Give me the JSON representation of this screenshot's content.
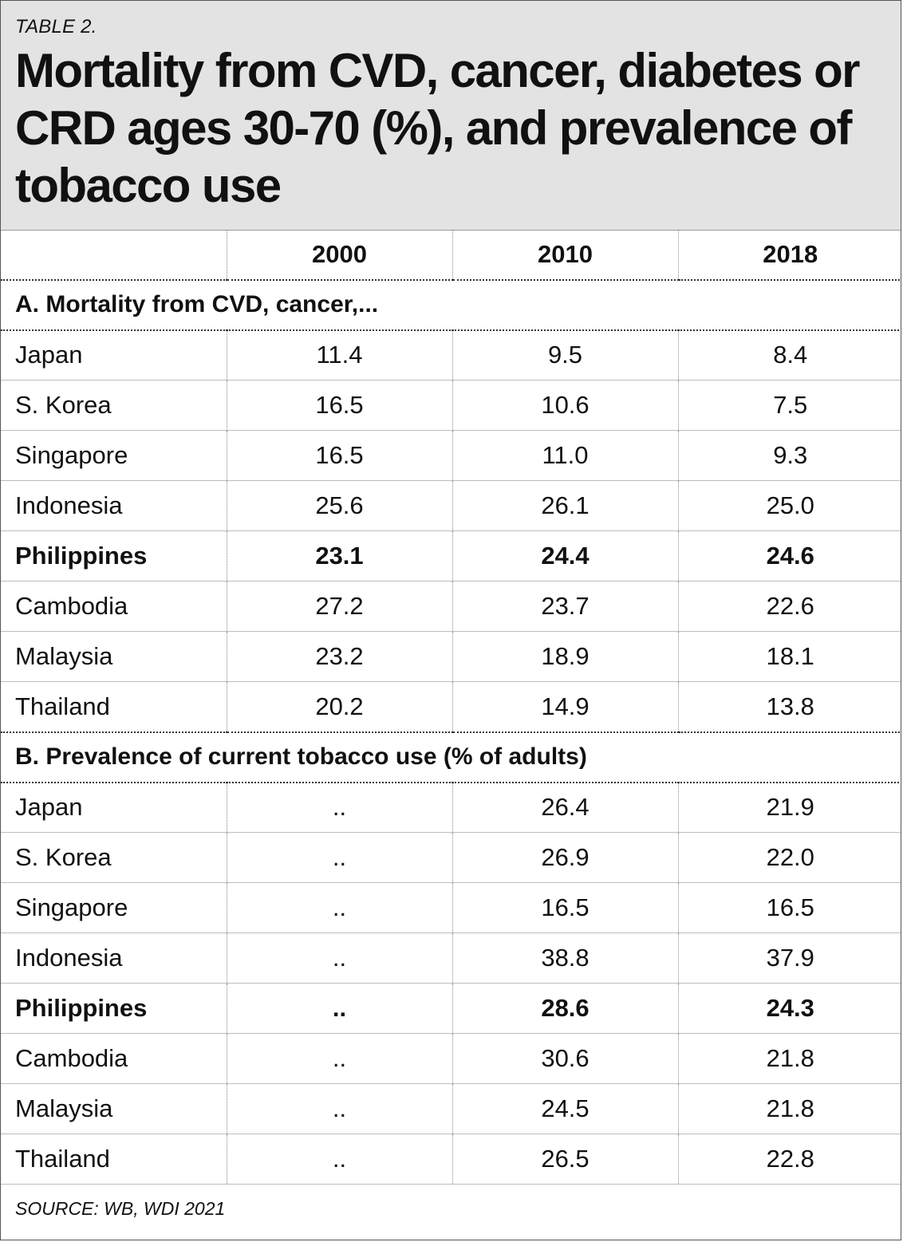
{
  "label": "TABLE 2.",
  "title": "Mortality from CVD, cancer, diabetes or CRD ages 30-70 (%), and prevalence of tobacco use",
  "columns": [
    "",
    "2000",
    "2010",
    "2018"
  ],
  "sections": [
    {
      "heading": "A. Mortality from CVD, cancer,...",
      "rows": [
        {
          "country": "Japan",
          "values": [
            "11.4",
            "9.5",
            "8.4"
          ],
          "bold": false
        },
        {
          "country": "S. Korea",
          "values": [
            "16.5",
            "10.6",
            "7.5"
          ],
          "bold": false
        },
        {
          "country": "Singapore",
          "values": [
            "16.5",
            "11.0",
            "9.3"
          ],
          "bold": false
        },
        {
          "country": "Indonesia",
          "values": [
            "25.6",
            "26.1",
            "25.0"
          ],
          "bold": false
        },
        {
          "country": "Philippines",
          "values": [
            "23.1",
            "24.4",
            "24.6"
          ],
          "bold": true
        },
        {
          "country": "Cambodia",
          "values": [
            "27.2",
            "23.7",
            "22.6"
          ],
          "bold": false
        },
        {
          "country": "Malaysia",
          "values": [
            "23.2",
            "18.9",
            "18.1"
          ],
          "bold": false
        },
        {
          "country": "Thailand",
          "values": [
            "20.2",
            "14.9",
            "13.8"
          ],
          "bold": false
        }
      ]
    },
    {
      "heading": "B. Prevalence of current tobacco use (% of adults)",
      "rows": [
        {
          "country": "Japan",
          "values": [
            "..",
            "26.4",
            "21.9"
          ],
          "bold": false
        },
        {
          "country": "S. Korea",
          "values": [
            "..",
            "26.9",
            "22.0"
          ],
          "bold": false
        },
        {
          "country": "Singapore",
          "values": [
            "..",
            "16.5",
            "16.5"
          ],
          "bold": false
        },
        {
          "country": "Indonesia",
          "values": [
            "..",
            "38.8",
            "37.9"
          ],
          "bold": false
        },
        {
          "country": "Philippines",
          "values": [
            "..",
            "28.6",
            "24.3"
          ],
          "bold": true
        },
        {
          "country": "Cambodia",
          "values": [
            "..",
            "30.6",
            "21.8"
          ],
          "bold": false
        },
        {
          "country": "Malaysia",
          "values": [
            "..",
            "24.5",
            "21.8"
          ],
          "bold": false
        },
        {
          "country": "Thailand",
          "values": [
            "..",
            "26.5",
            "22.8"
          ],
          "bold": false
        }
      ]
    }
  ],
  "source": "SOURCE: WB, WDI 2021"
}
